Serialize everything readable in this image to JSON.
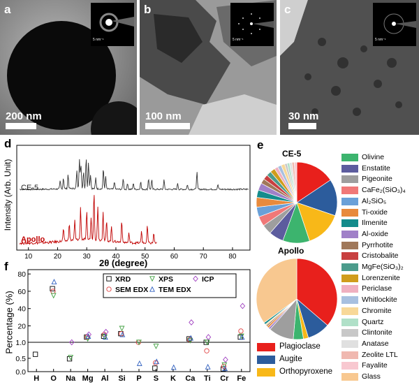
{
  "panels": {
    "a": {
      "letter": "a",
      "scale": "200 nm"
    },
    "b": {
      "letter": "b",
      "scale": "100 nm"
    },
    "c": {
      "letter": "c",
      "scale": "30 nm"
    },
    "d": {
      "letter": "d"
    },
    "e": {
      "letter": "e"
    },
    "f": {
      "letter": "f"
    },
    "inset_label": "5 nm⁻¹"
  },
  "colors": {
    "ce5_line": "#333333",
    "apollo_line": "#c00000",
    "xrd": "#000000",
    "sem_edx": "#e04040",
    "xps": "#40a040",
    "tem_edx": "#3060c0",
    "icp": "#a040c0"
  },
  "chart_data": [
    {
      "type": "line",
      "panel": "d",
      "xlabel": "2θ (degree)",
      "ylabel": "Intensity (Arb. Unit)",
      "xlim": [
        6,
        86
      ],
      "x_ticks": [
        10,
        20,
        30,
        40,
        50,
        60,
        70,
        80
      ],
      "series": [
        {
          "name": "CE-5",
          "color": "#333333",
          "peaks": [
            [
              20.9,
              0.25
            ],
            [
              22.0,
              0.35
            ],
            [
              23.6,
              0.45
            ],
            [
              26.6,
              0.55
            ],
            [
              27.5,
              0.95
            ],
            [
              28.0,
              0.75
            ],
            [
              28.9,
              0.55
            ],
            [
              29.8,
              1.0
            ],
            [
              30.6,
              0.85
            ],
            [
              31.3,
              0.45
            ],
            [
              33.1,
              0.35
            ],
            [
              35.7,
              0.65
            ],
            [
              36.5,
              0.4
            ],
            [
              39.5,
              0.25
            ],
            [
              42.5,
              0.35
            ],
            [
              44.0,
              0.2
            ],
            [
              46.0,
              0.2
            ],
            [
              48.5,
              0.25
            ],
            [
              51.2,
              0.35
            ],
            [
              52.3,
              0.3
            ],
            [
              56.5,
              0.3
            ],
            [
              61.2,
              0.2
            ],
            [
              64.5,
              0.15
            ],
            [
              67.8,
              0.55
            ],
            [
              75.0,
              0.15
            ]
          ]
        },
        {
          "name": "Apollo",
          "color": "#c00000",
          "peaks": [
            [
              22.0,
              0.25
            ],
            [
              24.0,
              0.35
            ],
            [
              25.9,
              0.4
            ],
            [
              27.9,
              0.65
            ],
            [
              30.0,
              0.55
            ],
            [
              31.5,
              0.45
            ],
            [
              32.5,
              1.0
            ],
            [
              33.8,
              0.7
            ],
            [
              35.6,
              0.6
            ],
            [
              36.8,
              0.4
            ],
            [
              38.5,
              0.3
            ],
            [
              42.0,
              0.45
            ],
            [
              44.5,
              0.2
            ],
            [
              48.8,
              0.25
            ],
            [
              50.8,
              0.35
            ],
            [
              53.0,
              0.2
            ]
          ]
        }
      ]
    },
    {
      "type": "pie",
      "panel": "e",
      "title": "CE-5",
      "labels": [
        "Olivine",
        "Enstatite",
        "Pigeonite",
        "CaFe₂(SiO₃)₄",
        "Al₂SiO₅",
        "Ti-oxide",
        "Ilmenite",
        "Al-oxide",
        "Pyrrhotite",
        "Cristobalite",
        "MgFe(SiO₃)₂",
        "Lorenzenite",
        "Periclase",
        "Whitlockite",
        "Chromite",
        "Quartz",
        "Clintonite",
        "Anatase",
        "Zeolite LTL",
        "Fayalite",
        "Glass",
        "Plagioclase",
        "Augite",
        "Orthopyroxene"
      ],
      "values": [
        0,
        0,
        0,
        0,
        0,
        0,
        0,
        0,
        0,
        0,
        0,
        0,
        0,
        0,
        0,
        0,
        0,
        0,
        0,
        0,
        0,
        16,
        15,
        15
      ],
      "extra_slices": [
        11,
        6,
        4,
        4,
        4,
        4,
        3,
        3,
        2,
        2,
        2,
        2,
        1.5,
        1.5,
        1.5,
        1,
        1,
        1,
        1,
        1
      ],
      "colors": [
        "#3cb46e",
        "#5c5c9e",
        "#9e9e9e",
        "#f07878",
        "#6aa0d8",
        "#e88a3c",
        "#148c8c",
        "#a080c8",
        "#a0785a",
        "#c84040",
        "#4c9c8c",
        "#d09c1c",
        "#f0b0c0",
        "#a8c0e0",
        "#f8d898",
        "#c8c8c8",
        "#b0e0c8",
        "#e0e0e0",
        "#f0b8b0",
        "#f8c8d0",
        "#f8c890",
        "#e8201c",
        "#2c5c9c",
        "#f8b818"
      ]
    },
    {
      "type": "pie",
      "panel": "e",
      "title": "Apollo",
      "slices": [
        {
          "label": "Plagioclase",
          "value": 36
        },
        {
          "label": "Augite",
          "value": 9
        },
        {
          "label": "Orthopyroxene",
          "value": 2
        },
        {
          "label": "Olivine",
          "value": 4
        },
        {
          "label": "Pigeonite",
          "value": 10
        },
        {
          "label": "Al-oxide",
          "value": 0.8
        },
        {
          "label": "Ti-oxide",
          "value": 0.8
        },
        {
          "label": "Pyrrhotite",
          "value": 0.6
        },
        {
          "label": "Chromite",
          "value": 0.5
        },
        {
          "label": "Ilmenite",
          "value": 0.8
        },
        {
          "label": "Glass",
          "value": 34.7
        }
      ]
    },
    {
      "type": "scatter",
      "panel": "f",
      "ylabel": "Percentage (%)",
      "categories": [
        "H",
        "O",
        "Na",
        "Mg",
        "Al",
        "Si",
        "P",
        "S",
        "K",
        "Ca",
        "Ti",
        "Cr",
        "Fe"
      ],
      "y_ticks_upper": [
        "1.0",
        "20",
        "40",
        "60",
        "80"
      ],
      "y_ticks_lower": [
        "0.0",
        "0.5",
        "1.0"
      ],
      "series": [
        {
          "name": "XRD",
          "marker": "square",
          "values": [
            0.65,
            63,
            0.48,
            7,
            8,
            11,
            null,
            0.13,
            null,
            5,
            1.0,
            0.1,
            7
          ]
        },
        {
          "name": "SEM EDX",
          "marker": "circle",
          "values": [
            null,
            60,
            null,
            7,
            10,
            11,
            1.0,
            0.33,
            null,
            4,
            0.78,
            0.2,
            14
          ]
        },
        {
          "name": "XPS",
          "marker": "triangle-down",
          "values": [
            null,
            55,
            0.53,
            5,
            7,
            17,
            1.0,
            0.95,
            null,
            3,
            1.0,
            0.25,
            8
          ]
        },
        {
          "name": "TEM EDX",
          "marker": "triangle-up",
          "values": [
            null,
            71,
            null,
            8,
            7,
            10,
            0.31,
            0.38,
            0.16,
            6,
            0.18,
            0.12,
            7
          ]
        },
        {
          "name": "ICP",
          "marker": "diamond",
          "values": [
            null,
            null,
            1.0,
            10,
            13,
            null,
            null,
            null,
            null,
            24,
            7,
            0.45,
            43
          ]
        }
      ]
    }
  ],
  "legend_e1": [
    {
      "label": "Olivine",
      "color": "#3cb46e"
    },
    {
      "label": "Enstatite",
      "color": "#5c5c9e"
    },
    {
      "label": "Pigeonite",
      "color": "#9e9e9e"
    },
    {
      "label": "CaFe₂(SiO₃)₄",
      "color": "#f07878"
    },
    {
      "label": "Al₂SiO₅",
      "color": "#6aa0d8"
    },
    {
      "label": "Ti-oxide",
      "color": "#e88a3c"
    },
    {
      "label": "Ilmenite",
      "color": "#148c8c"
    },
    {
      "label": "Al-oxide",
      "color": "#a080c8"
    },
    {
      "label": "Pyrrhotite",
      "color": "#a0785a"
    },
    {
      "label": "Cristobalite",
      "color": "#c84040"
    },
    {
      "label": "MgFe(SiO₃)₂",
      "color": "#4c9c8c"
    },
    {
      "label": "Lorenzenite",
      "color": "#d09c1c"
    },
    {
      "label": "Periclase",
      "color": "#f0b0c0"
    },
    {
      "label": "Whitlockite",
      "color": "#a8c0e0"
    },
    {
      "label": "Chromite",
      "color": "#f8d898"
    },
    {
      "label": "Quartz",
      "color": "#b0e0c8"
    },
    {
      "label": "Clintonite",
      "color": "#c8c8c8"
    },
    {
      "label": "Anatase",
      "color": "#e0e0e0"
    },
    {
      "label": "Zeolite LTL",
      "color": "#f0b8b0"
    },
    {
      "label": "Fayalite",
      "color": "#f8c8d0"
    },
    {
      "label": "Glass",
      "color": "#f8c890"
    }
  ],
  "legend_e2": [
    {
      "label": "Plagioclase",
      "color": "#e8201c"
    },
    {
      "label": "Augite",
      "color": "#2c5c9c"
    },
    {
      "label": "Orthopyroxene",
      "color": "#f8b818"
    }
  ]
}
